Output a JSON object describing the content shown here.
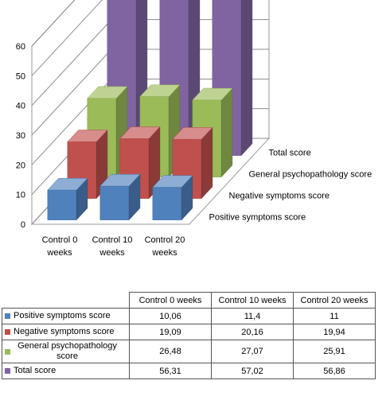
{
  "chart_data": {
    "type": "bar",
    "subtype": "3d-clustered",
    "title": "",
    "xlabel": "",
    "ylabel": "",
    "ylim": [
      0,
      60
    ],
    "yticks": [
      0,
      10,
      20,
      30,
      40,
      50,
      60
    ],
    "grid": true,
    "legend": "data-table",
    "categories": [
      "Control 0 weeks",
      "Control 10 weeks",
      "Control 20 weeks"
    ],
    "series": [
      {
        "name": "Positive symptoms score",
        "color": "#4F81BD",
        "values": [
          10.06,
          11.4,
          11
        ],
        "labels": [
          "10,06",
          "11,4",
          "11"
        ]
      },
      {
        "name": "Negative symptoms score",
        "color": "#C0504D",
        "values": [
          19.09,
          20.16,
          19.94
        ],
        "labels": [
          "19,09",
          "20,16",
          "19,94"
        ]
      },
      {
        "name": "General psychopathology score",
        "color": "#9BBB59",
        "values": [
          26.48,
          27.07,
          25.91
        ],
        "labels": [
          "26,48",
          "27,07",
          "25,91"
        ]
      },
      {
        "name": "Total score",
        "color": "#8064A2",
        "values": [
          56.31,
          57.02,
          56.86
        ],
        "labels": [
          "56,31",
          "57,02",
          "56,86"
        ]
      }
    ]
  },
  "table": {
    "headers": [
      "Control 0 weeks",
      "Control 10 weeks",
      "Control 20 weeks"
    ]
  }
}
